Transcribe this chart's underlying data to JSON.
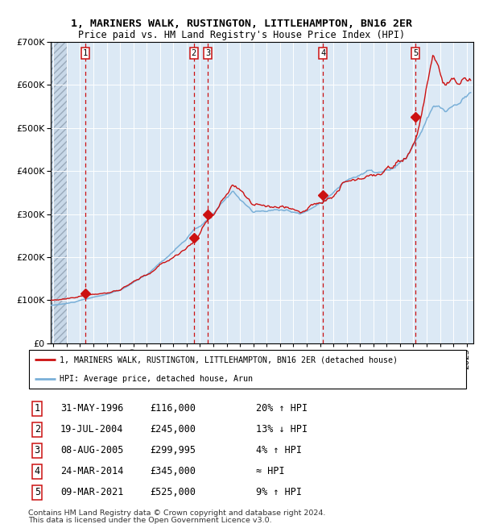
{
  "title1": "1, MARINERS WALK, RUSTINGTON, LITTLEHAMPTON, BN16 2ER",
  "title2": "Price paid vs. HM Land Registry's House Price Index (HPI)",
  "sale_dates_num": [
    1996.41,
    2004.54,
    2005.6,
    2014.23,
    2021.18
  ],
  "sale_prices": [
    116000,
    245000,
    299995,
    345000,
    525000
  ],
  "sale_labels": [
    "1",
    "2",
    "3",
    "4",
    "5"
  ],
  "ylim": [
    0,
    700000
  ],
  "xlim_start": 1993.8,
  "xlim_end": 2025.5,
  "hpi_color": "#7ab0d8",
  "price_color": "#cc1111",
  "bg_color": "#dce9f5",
  "grid_color": "#ffffff",
  "legend_label1": "1, MARINERS WALK, RUSTINGTON, LITTLEHAMPTON, BN16 2ER (detached house)",
  "legend_label2": "HPI: Average price, detached house, Arun",
  "table_rows": [
    [
      "1",
      "31-MAY-1996",
      "£116,000",
      "20% ↑ HPI"
    ],
    [
      "2",
      "19-JUL-2004",
      "£245,000",
      "13% ↓ HPI"
    ],
    [
      "3",
      "08-AUG-2005",
      "£299,995",
      "4% ↑ HPI"
    ],
    [
      "4",
      "24-MAR-2014",
      "£345,000",
      "≈ HPI"
    ],
    [
      "5",
      "09-MAR-2021",
      "£525,000",
      "9% ↑ HPI"
    ]
  ],
  "footnote1": "Contains HM Land Registry data © Crown copyright and database right 2024.",
  "footnote2": "This data is licensed under the Open Government Licence v3.0."
}
